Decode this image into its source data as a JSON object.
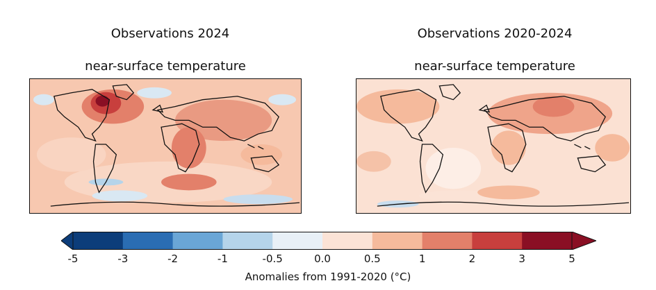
{
  "maps": [
    {
      "title": "Observations 2024",
      "subtitle": "near-surface temperature"
    },
    {
      "title": "Observations 2020-2024",
      "subtitle": "near-surface temperature"
    }
  ],
  "colorbar": {
    "label": "Anomalies from 1991-2020 (°C)",
    "ticks": [
      "-5",
      "-3",
      "-2",
      "-1",
      "-0.5",
      "0.0",
      "0.5",
      "1",
      "2",
      "3",
      "5"
    ],
    "colors": [
      "#0c3d7a",
      "#2a6db3",
      "#6aa6d6",
      "#b5d4ea",
      "#e8f0f7",
      "#fbe3d6",
      "#f5ba9c",
      "#e3806a",
      "#c83f3d",
      "#8a0f24"
    ]
  }
}
